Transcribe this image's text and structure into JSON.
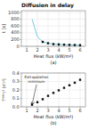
{
  "chart_data": [
    {
      "type": "line",
      "title": "Diffusion in delay",
      "x_label": "Heat flux (kW/m²)",
      "y_label": "t [s]",
      "panel_label": "(a)",
      "xlim": [
        0.5,
        6.5
      ],
      "ylim": [
        0,
        1050
      ],
      "xticks": [
        1,
        2,
        3,
        4,
        5,
        6
      ],
      "yticks": [
        0,
        200,
        400,
        600,
        800,
        1000
      ],
      "grid": true,
      "series": [
        {
          "type": "line",
          "color": "#77ccdd",
          "x": [
            1.5,
            2.0,
            2.5,
            3.0,
            3.5,
            4.0,
            4.5,
            5.0,
            5.5,
            6.0
          ],
          "values": [
            800,
            280,
            130,
            90,
            65,
            55,
            48,
            42,
            38,
            33
          ]
        },
        {
          "type": "scatter",
          "color": "#111111",
          "marker": "square",
          "x": [
            2.5,
            3.0,
            3.5,
            4.0,
            4.5,
            5.0,
            5.5,
            6.0
          ],
          "values": [
            130,
            90,
            65,
            55,
            48,
            42,
            38,
            33
          ]
        }
      ]
    },
    {
      "type": "scatter",
      "x_label": "Heat flux (kW/m²)",
      "y_label": "Tᴵᴳᴺ¹/² (s¹/²)",
      "panel_label": "(b)",
      "xlim": [
        0.5,
        6.5
      ],
      "ylim": [
        0.0,
        0.4
      ],
      "xticks": [
        1,
        2,
        3,
        4,
        5,
        6
      ],
      "yticks": [
        {
          "value": 0,
          "label": "0.0"
        },
        0.1,
        0.2,
        0.3,
        0.4
      ],
      "grid": true,
      "color": "#111111",
      "marker": "square",
      "x": [
        1.5,
        2.0,
        2.5,
        3.0,
        3.5,
        4.0,
        4.5,
        5.0,
        5.5,
        6.0
      ],
      "values": [
        0.025,
        0.055,
        0.09,
        0.13,
        0.165,
        0.195,
        0.225,
        0.255,
        0.285,
        0.32
      ],
      "annotations": [
        {
          "text": "Extrapolation\nminimum",
          "x": 1.5,
          "y": 0.025
        }
      ]
    }
  ]
}
